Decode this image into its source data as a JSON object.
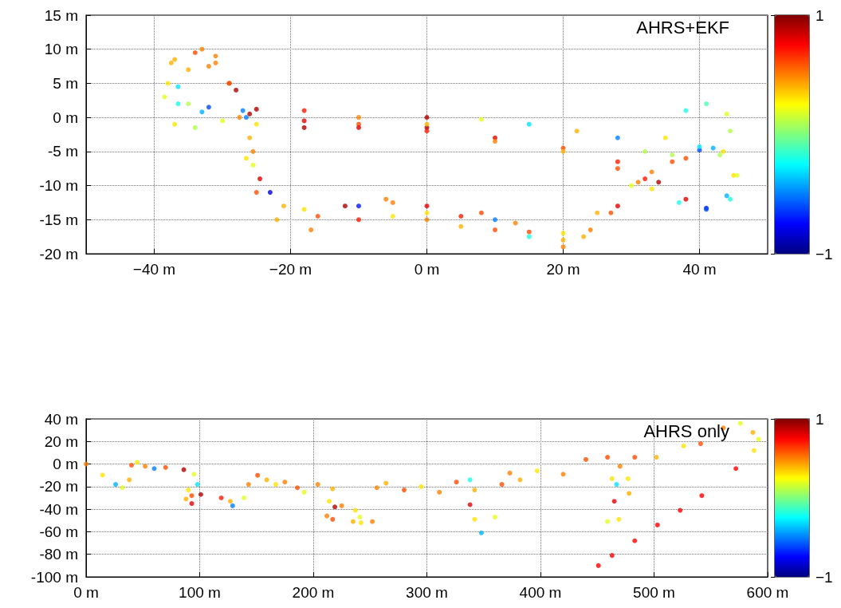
{
  "chart_data": [
    {
      "type": "scatter",
      "legend": "top right",
      "grid": true,
      "xlim": [
        -50,
        50
      ],
      "xticks": [
        {
          "value": -40,
          "label": "−40 m"
        },
        {
          "value": -20,
          "label": "−20 m"
        },
        {
          "value": 0,
          "label": "0 m"
        },
        {
          "value": 20,
          "label": "20 m"
        },
        {
          "value": 40,
          "label": "40 m"
        }
      ],
      "ylim": [
        -20,
        15
      ],
      "yticks": [
        {
          "value": -20,
          "label": "-20 m"
        },
        {
          "value": -15,
          "label": "-15 m"
        },
        {
          "value": -10,
          "label": "-10 m"
        },
        {
          "value": -5,
          "label": "-5 m"
        },
        {
          "value": 0,
          "label": "0 m"
        },
        {
          "value": 5,
          "label": "5 m"
        },
        {
          "value": 10,
          "label": "10 m"
        },
        {
          "value": 15,
          "label": "15 m"
        }
      ],
      "clim": [
        -1,
        1
      ],
      "cticks": [
        {
          "value": -1,
          "label": "−1"
        },
        1
      ],
      "series": [
        {
          "name": "AHRS+EKF",
          "x": [
            0,
            8,
            15,
            22,
            28,
            32,
            35,
            38,
            41,
            44,
            44.5,
            42,
            38,
            33,
            30,
            25,
            20,
            13,
            8,
            0,
            -6,
            -12,
            -18,
            -23,
            -25.5,
            -26,
            -27,
            -29,
            -32,
            -35,
            -36.5,
            -35,
            -32,
            -25,
            -18,
            -10,
            0,
            10,
            20,
            28,
            34,
            38,
            41,
            44,
            45,
            43,
            40,
            36,
            32,
            28,
            24,
            20,
            15,
            10,
            5,
            0,
            -5,
            -10,
            -16,
            -21,
            -24.5,
            -25.5,
            -26.5,
            -28,
            -31,
            -34,
            -37.5,
            -38,
            -36.5,
            -33,
            -26,
            -18,
            -10,
            0,
            10,
            20,
            28,
            33,
            37,
            41,
            44.5,
            45.5,
            43.5,
            40,
            36,
            31,
            27,
            23,
            20,
            15,
            10,
            5,
            0,
            -5,
            -10,
            -17,
            -22,
            -25,
            -26.5,
            -27.5,
            -29,
            -31,
            -33,
            -37,
            -38.5,
            -37,
            -34,
            -30,
            -25,
            -18,
            -10,
            0
          ],
          "values": [
            0,
            -0.3,
            -1,
            -2,
            -3,
            -5,
            -3,
            1,
            2,
            0.5,
            -2,
            -4.5,
            -6,
            -8,
            -10,
            -14,
            -17,
            -15.5,
            -14,
            -13,
            -12,
            -13,
            -13.5,
            -11,
            -7,
            -3,
            1,
            5,
            7.5,
            7,
            4.5,
            2,
            1.5,
            1.2,
            1,
            0,
            -1.5,
            -3,
            -4.5,
            -6.5,
            -9.5,
            -12,
            -13.3,
            -11.5,
            -8.5,
            -5.5,
            -4.8,
            -6.5,
            -9,
            -13,
            -16.5,
            -18,
            -16.8,
            -15,
            -14.5,
            -14,
            -12.5,
            -13,
            -14.5,
            -13,
            -9,
            -5,
            0,
            4,
            8,
            9.5,
            8,
            5,
            2,
            0.8,
            0.5,
            -0.5,
            -1,
            -2,
            -3.5,
            -5,
            -7.5,
            -10.5,
            -12.5,
            -13.5,
            -12,
            -8.5,
            -5,
            -4.3,
            -5.5,
            -9.5,
            -14,
            -17.5,
            -19,
            -17.5,
            -16.5,
            -16,
            -15,
            -14.5,
            -15,
            -16.5,
            -15,
            -11,
            -6,
            0,
            5,
            9,
            10,
            8.5,
            3,
            -1,
            -1.5,
            -0.5,
            -1,
            -1.5,
            -1.5,
            -1
          ],
          "cvalues": [
            0.9,
            0.2,
            -0.3,
            0.4,
            -0.5,
            0.1,
            0.3,
            -0.2,
            -0.1,
            0.2,
            0.1,
            -0.4,
            0.6,
            0.5,
            0.2,
            0.4,
            0.3,
            0.5,
            0.6,
            0.8,
            0.5,
            0.9,
            0.3,
            -0.8,
            0.2,
            0.4,
            -0.5,
            0.6,
            0.5,
            0.4,
            -0.3,
            0.1,
            -0.6,
            0.9,
            0.7,
            0.5,
            0.9,
            0.8,
            0.6,
            0.7,
            0.9,
            0.8,
            -0.7,
            -0.4,
            0.3,
            0.1,
            -0.6,
            0.6,
            0.7,
            0.8,
            0.5,
            0.4,
            0.6,
            -0.5,
            0.7,
            0.3,
            0.5,
            -0.7,
            0.6,
            0.4,
            0.8,
            0.5,
            -0.5,
            0.9,
            0.5,
            0.6,
            0.4,
            0.3,
            -0.2,
            -0.4,
            0.9,
            0.8,
            0.6,
            0.7,
            0.5,
            0.4,
            0.6,
            0.3,
            -0.2,
            -0.6,
            -0.2,
            0.2,
            0.3,
            -0.3,
            0.1,
            0.5,
            0.6,
            0.4,
            0.5,
            -0.2,
            0.6,
            0.4,
            0.5,
            0.3,
            0.7,
            0.5,
            0.4,
            0.6,
            0.3,
            0.5,
            0.6,
            0.5,
            0.5,
            0.4,
            0.2,
            0.3,
            0.1,
            0.2,
            0.3,
            0.9,
            0.8,
            0.4
          ]
        }
      ]
    },
    {
      "type": "scatter",
      "legend": "top right",
      "grid": true,
      "xlim": [
        0,
        600
      ],
      "xticks": [
        {
          "value": 0,
          "label": "0 m"
        },
        {
          "value": 100,
          "label": "100 m"
        },
        {
          "value": 200,
          "label": "200 m"
        },
        {
          "value": 300,
          "label": "300 m"
        },
        {
          "value": 400,
          "label": "400 m"
        },
        {
          "value": 500,
          "label": "500 m"
        },
        {
          "value": 600,
          "label": "600 m"
        }
      ],
      "ylim": [
        -100,
        40
      ],
      "yticks": [
        {
          "value": -100,
          "label": "-100 m"
        },
        {
          "value": -80,
          "label": "-80 m"
        },
        {
          "value": -60,
          "label": "-60 m"
        },
        {
          "value": -40,
          "label": "-40 m"
        },
        {
          "value": -20,
          "label": "-20 m"
        },
        {
          "value": 0,
          "label": "0 m"
        },
        {
          "value": 20,
          "label": "20 m"
        },
        {
          "value": 40,
          "label": "40 m"
        }
      ],
      "clim": [
        -1,
        1
      ],
      "cticks": [
        {
          "value": -1,
          "label": "−1"
        },
        1
      ],
      "series": [
        {
          "name": "AHRS only",
          "x": [
            0,
            14.5,
            26,
            32,
            38,
            40,
            45,
            52,
            60,
            70,
            86,
            95,
            98,
            90,
            88,
            93,
            93,
            101,
            119,
            127,
            129,
            139,
            143,
            151,
            159,
            167,
            175,
            186,
            192,
            204,
            217,
            214,
            212,
            217,
            219,
            225,
            237,
            241,
            235,
            242,
            252,
            256,
            264,
            280,
            295,
            311,
            326,
            338,
            342,
            338,
            342,
            348,
            360,
            366,
            373,
            382,
            397,
            420,
            440,
            459,
            463,
            465,
            459,
            469,
            478,
            477,
            467,
            470,
            483,
            502,
            526,
            541,
            561,
            576,
            587,
            592,
            588,
            572,
            542,
            523,
            503,
            483,
            463,
            451
          ],
          "values": [
            0,
            -9.8,
            -18,
            -21,
            -14,
            -1,
            1.5,
            -2,
            -4,
            -3,
            -5,
            -9,
            -18,
            -23,
            -31,
            -35,
            -28,
            -27,
            -30,
            -33,
            -37,
            -30,
            -18,
            -10,
            -14,
            -18,
            -16,
            -21,
            -25,
            -18,
            -22,
            -33,
            -46,
            -49,
            -38,
            -37,
            -41,
            -47,
            -51,
            -52,
            -51,
            -21,
            -17,
            -23,
            -20,
            -25,
            -16,
            -14,
            -23,
            -36,
            -49,
            -61,
            -47,
            -18,
            -8,
            -14,
            -6,
            -9,
            4,
            6,
            -13,
            -33,
            -51,
            -49,
            -26,
            -13,
            -18,
            -2,
            6,
            6,
            16,
            18,
            32,
            36,
            28,
            22,
            12,
            -4,
            -28,
            -41,
            -54,
            -68,
            -81,
            -90
          ],
          "cvalues": [
            0.5,
            0.3,
            -0.4,
            0.2,
            0.4,
            0.6,
            0.3,
            0.5,
            -0.5,
            0.6,
            0.9,
            0.2,
            -0.3,
            0.3,
            0.4,
            0.8,
            0.6,
            0.9,
            0.7,
            0.4,
            -0.5,
            0.2,
            0.5,
            0.6,
            0.4,
            0.3,
            0.5,
            0.6,
            0.2,
            0.5,
            0.4,
            0.3,
            0.5,
            0.6,
            0.9,
            0.5,
            0.3,
            0.2,
            0.4,
            0.3,
            0.5,
            0.5,
            0.4,
            0.6,
            0.3,
            0.5,
            0.6,
            -0.2,
            0.4,
            0.8,
            0.3,
            -0.4,
            0.2,
            0.6,
            0.5,
            0.4,
            0.3,
            0.5,
            0.6,
            0.6,
            0.3,
            0.8,
            0.2,
            0.3,
            0.4,
            0.3,
            -0.3,
            0.5,
            0.6,
            0.4,
            0.3,
            0.6,
            0.5,
            0.2,
            0.4,
            0.2,
            0.3,
            0.75,
            0.75,
            0.75,
            0.75,
            0.75,
            0.75,
            0.75
          ]
        }
      ]
    }
  ]
}
